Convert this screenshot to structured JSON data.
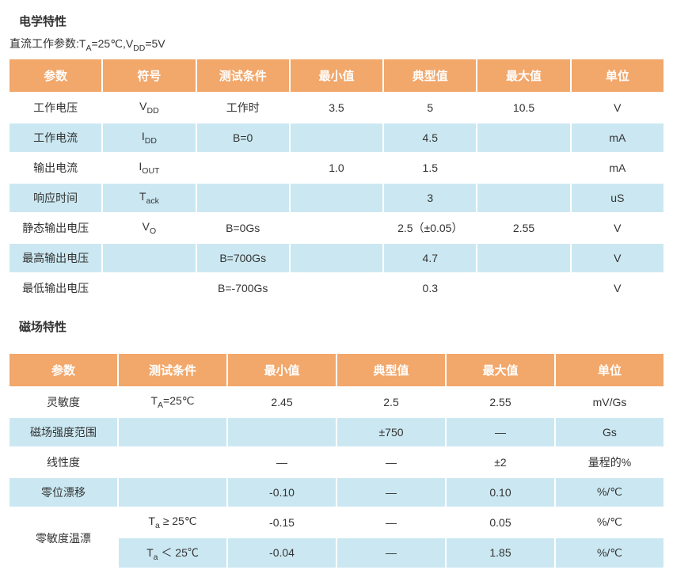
{
  "colors": {
    "header_bg": "#f2a76b",
    "header_text": "#ffffff",
    "row_even_bg": "#cbe8f2",
    "row_odd_bg": "#ffffff",
    "text": "#333333",
    "border": "#ffffff"
  },
  "electrical": {
    "section_title": "电学特性",
    "subtitle_prefix": "直流工作参数:T",
    "subtitle_sub1": "A",
    "subtitle_mid": "=25℃,V",
    "subtitle_sub2": "DD",
    "subtitle_suffix": "=5V",
    "columns": [
      "参数",
      "符号",
      "测试条件",
      "最小值",
      "典型值",
      "最大值",
      "单位"
    ],
    "rows": [
      {
        "param": "工作电压",
        "symbol_base": "V",
        "symbol_sub": "DD",
        "cond": "工作时",
        "min": "3.5",
        "typ": "5",
        "max": "10.5",
        "unit": "V"
      },
      {
        "param": "工作电流",
        "symbol_base": "I",
        "symbol_sub": "DD",
        "cond": "B=0",
        "min": "",
        "typ": "4.5",
        "max": "",
        "unit": "mA"
      },
      {
        "param": "输出电流",
        "symbol_base": "I",
        "symbol_sub": "OUT",
        "cond": "",
        "min": "1.0",
        "typ": "1.5",
        "max": "",
        "unit": "mA"
      },
      {
        "param": "响应时间",
        "symbol_base": "T",
        "symbol_sub": "ack",
        "cond": "",
        "min": "",
        "typ": "3",
        "max": "",
        "unit": "uS"
      },
      {
        "param": "静态输出电压",
        "symbol_base": "V",
        "symbol_sub": "O",
        "cond": "B=0Gs",
        "min": "",
        "typ": "2.5（±0.05）",
        "max": "2.55",
        "unit": "V"
      },
      {
        "param": "最高输出电压",
        "symbol_base": "",
        "symbol_sub": "",
        "cond": "B=700Gs",
        "min": "",
        "typ": "4.7",
        "max": "",
        "unit": "V"
      },
      {
        "param": "最低输出电压",
        "symbol_base": "",
        "symbol_sub": "",
        "cond": "B=-700Gs",
        "min": "",
        "typ": "0.3",
        "max": "",
        "unit": "V"
      }
    ]
  },
  "magnetic": {
    "section_title": "磁场特性",
    "columns": [
      "参数",
      "测试条件",
      "最小值",
      "典型值",
      "最大值",
      "单位"
    ],
    "rows": [
      {
        "param": "灵敏度",
        "cond_base": "T",
        "cond_sub": "A",
        "cond_suffix": "=25℃",
        "min": "2.45",
        "typ": "2.5",
        "max": "2.55",
        "unit": "mV/Gs"
      },
      {
        "param": "磁场强度范围",
        "cond_base": "",
        "cond_sub": "",
        "cond_suffix": "",
        "min": "",
        "typ": "±750",
        "max": "—",
        "unit": "Gs"
      },
      {
        "param": "线性度",
        "cond_base": "",
        "cond_sub": "",
        "cond_suffix": "",
        "min": "—",
        "typ": "—",
        "max": "±2",
        "unit": "量程的%"
      },
      {
        "param": "零位漂移",
        "cond_base": "",
        "cond_sub": "",
        "cond_suffix": "",
        "min": "-0.10",
        "typ": "—",
        "max": "0.10",
        "unit": "%/℃"
      },
      {
        "param": "零敏度温漂",
        "cond_base": "T",
        "cond_sub": "a",
        "cond_suffix": " ≥ 25℃",
        "min": "-0.15",
        "typ": "—",
        "max": "0.05",
        "unit": "%/℃"
      },
      {
        "param": "",
        "cond_base": "T",
        "cond_sub": "a",
        "cond_suffix": " ＜ 25℃",
        "min": "-0.04",
        "typ": "—",
        "max": "1.85",
        "unit": "%/℃"
      }
    ]
  }
}
